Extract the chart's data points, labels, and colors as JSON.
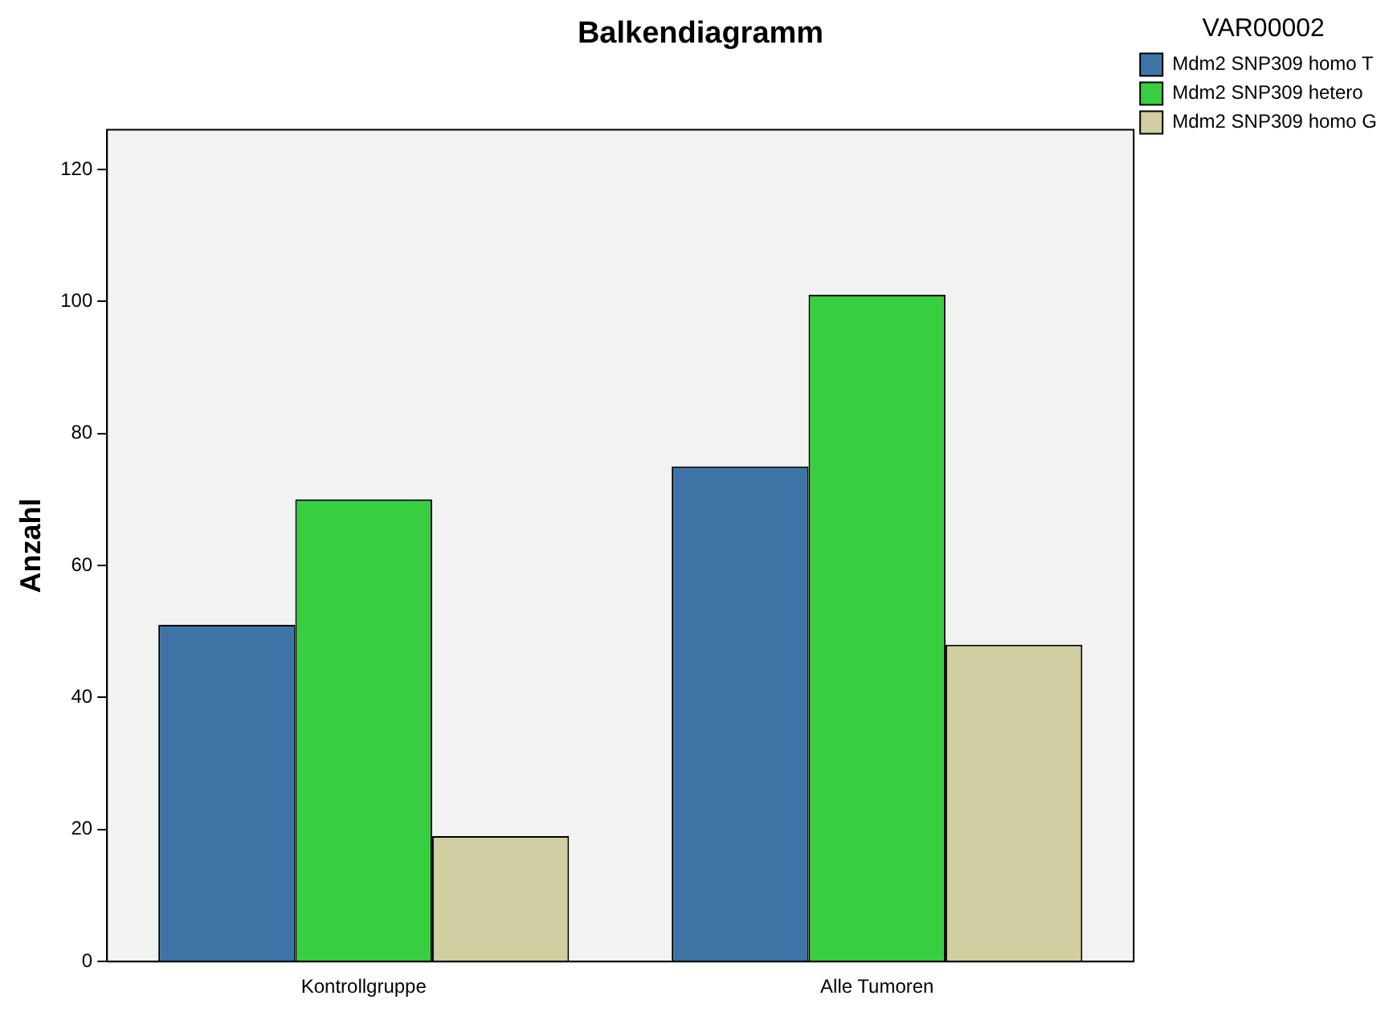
{
  "chart_data": {
    "type": "bar",
    "title": "Balkendiagramm",
    "ylabel": "Anzahl",
    "legend_title": "VAR00002",
    "categories": [
      "Kontrollgruppe",
      "Alle Tumoren"
    ],
    "series": [
      {
        "name": "Mdm2 SNP309 homo T",
        "color": "#3e74a5",
        "values": [
          51,
          75
        ]
      },
      {
        "name": "Mdm2 SNP309 hetero",
        "color": "#37cf40",
        "values": [
          70,
          101
        ]
      },
      {
        "name": "Mdm2 SNP309 homo G",
        "color": "#d1cfa2",
        "values": [
          19,
          48
        ]
      }
    ],
    "ylim": [
      0,
      126
    ],
    "yticks": [
      0,
      20,
      40,
      60,
      80,
      100,
      120
    ],
    "grid": false,
    "legend": "right"
  }
}
